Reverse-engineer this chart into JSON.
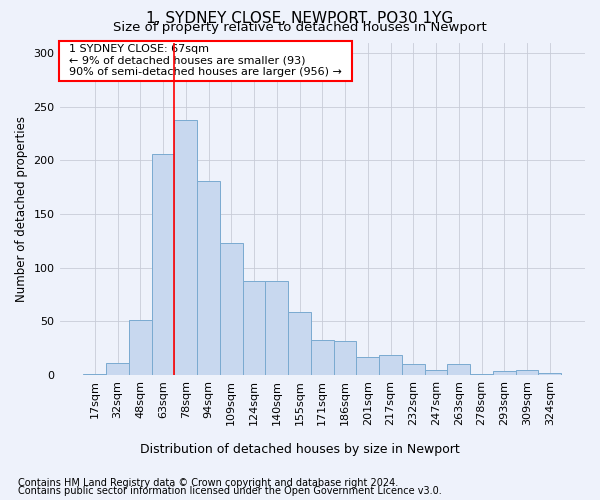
{
  "title": "1, SYDNEY CLOSE, NEWPORT, PO30 1YG",
  "subtitle": "Size of property relative to detached houses in Newport",
  "xlabel": "Distribution of detached houses by size in Newport",
  "ylabel": "Number of detached properties",
  "footer1": "Contains HM Land Registry data © Crown copyright and database right 2024.",
  "footer2": "Contains public sector information licensed under the Open Government Licence v3.0.",
  "annotation_line1": "1 SYDNEY CLOSE: 67sqm",
  "annotation_line2": "← 9% of detached houses are smaller (93)",
  "annotation_line3": "90% of semi-detached houses are larger (956) →",
  "bar_labels": [
    "17sqm",
    "32sqm",
    "48sqm",
    "63sqm",
    "78sqm",
    "94sqm",
    "109sqm",
    "124sqm",
    "140sqm",
    "155sqm",
    "171sqm",
    "186sqm",
    "201sqm",
    "217sqm",
    "232sqm",
    "247sqm",
    "263sqm",
    "278sqm",
    "293sqm",
    "309sqm",
    "324sqm"
  ],
  "bar_values": [
    1,
    11,
    51,
    206,
    238,
    181,
    123,
    88,
    88,
    59,
    33,
    32,
    17,
    19,
    10,
    5,
    10,
    1,
    4,
    5,
    2
  ],
  "bar_color": "#c8d8ef",
  "bar_edge_color": "#7aaad0",
  "red_line_x": 3.5,
  "ylim": [
    0,
    310
  ],
  "yticks": [
    0,
    50,
    100,
    150,
    200,
    250,
    300
  ],
  "bg_color": "#eef2fb",
  "plot_bg_color": "#eef2fb",
  "title_fontsize": 11,
  "subtitle_fontsize": 9.5,
  "annotation_fontsize": 8,
  "tick_fontsize": 8,
  "ylabel_fontsize": 8.5,
  "xlabel_fontsize": 9,
  "footer_fontsize": 7
}
